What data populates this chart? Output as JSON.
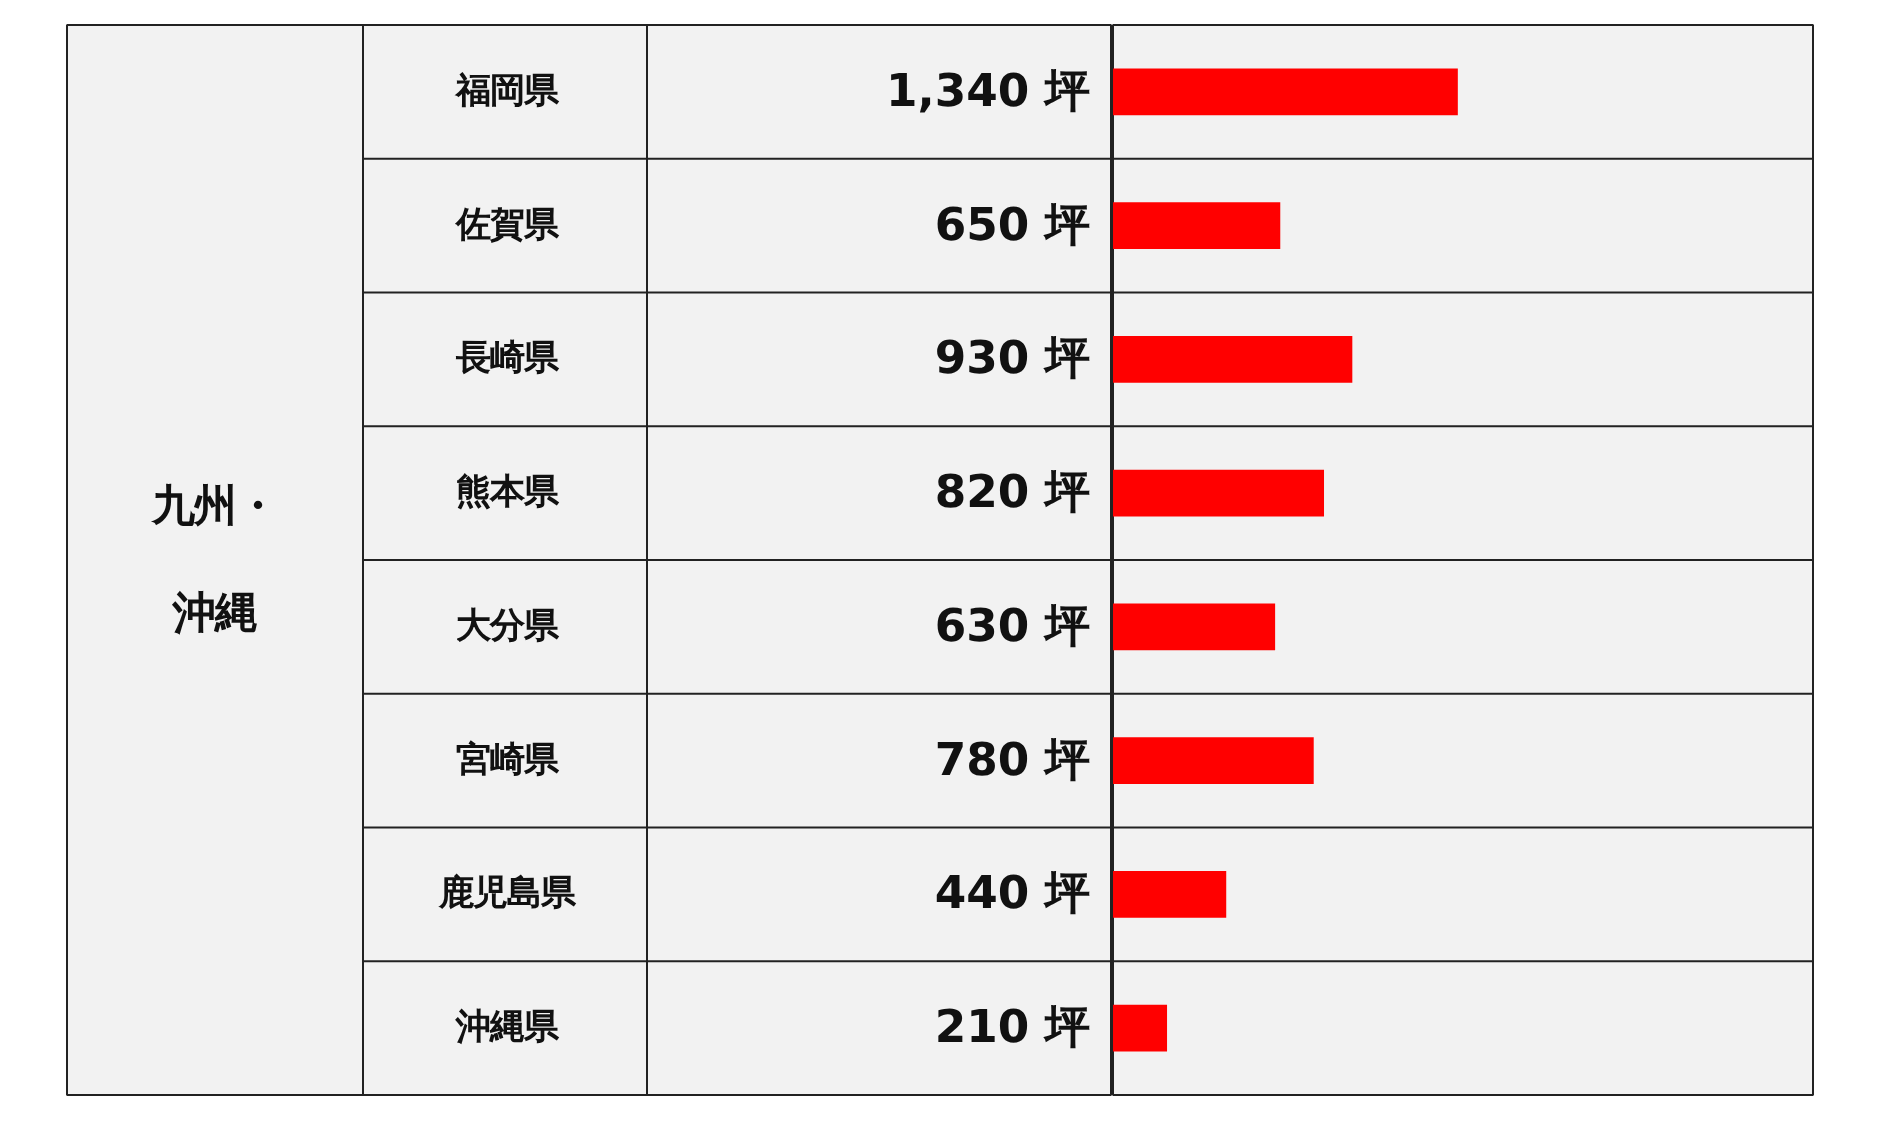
{
  "chart_data": {
    "type": "bar",
    "orientation": "horizontal",
    "categories": [
      "福岡県",
      "佐賀県",
      "長崎県",
      "熊本県",
      "大分県",
      "宮崎県",
      "鹿児島県",
      "沖縄県"
    ],
    "values": [
      1340,
      650,
      930,
      820,
      630,
      780,
      440,
      210
    ],
    "value_labels": [
      "1,340 坪",
      "650 坪",
      "930 坪",
      "820 坪",
      "630 坪",
      "780 坪",
      "440 坪",
      "210 坪"
    ],
    "color": "#ff0000",
    "annotations": [
      "九州・",
      "沖縄"
    ]
  }
}
